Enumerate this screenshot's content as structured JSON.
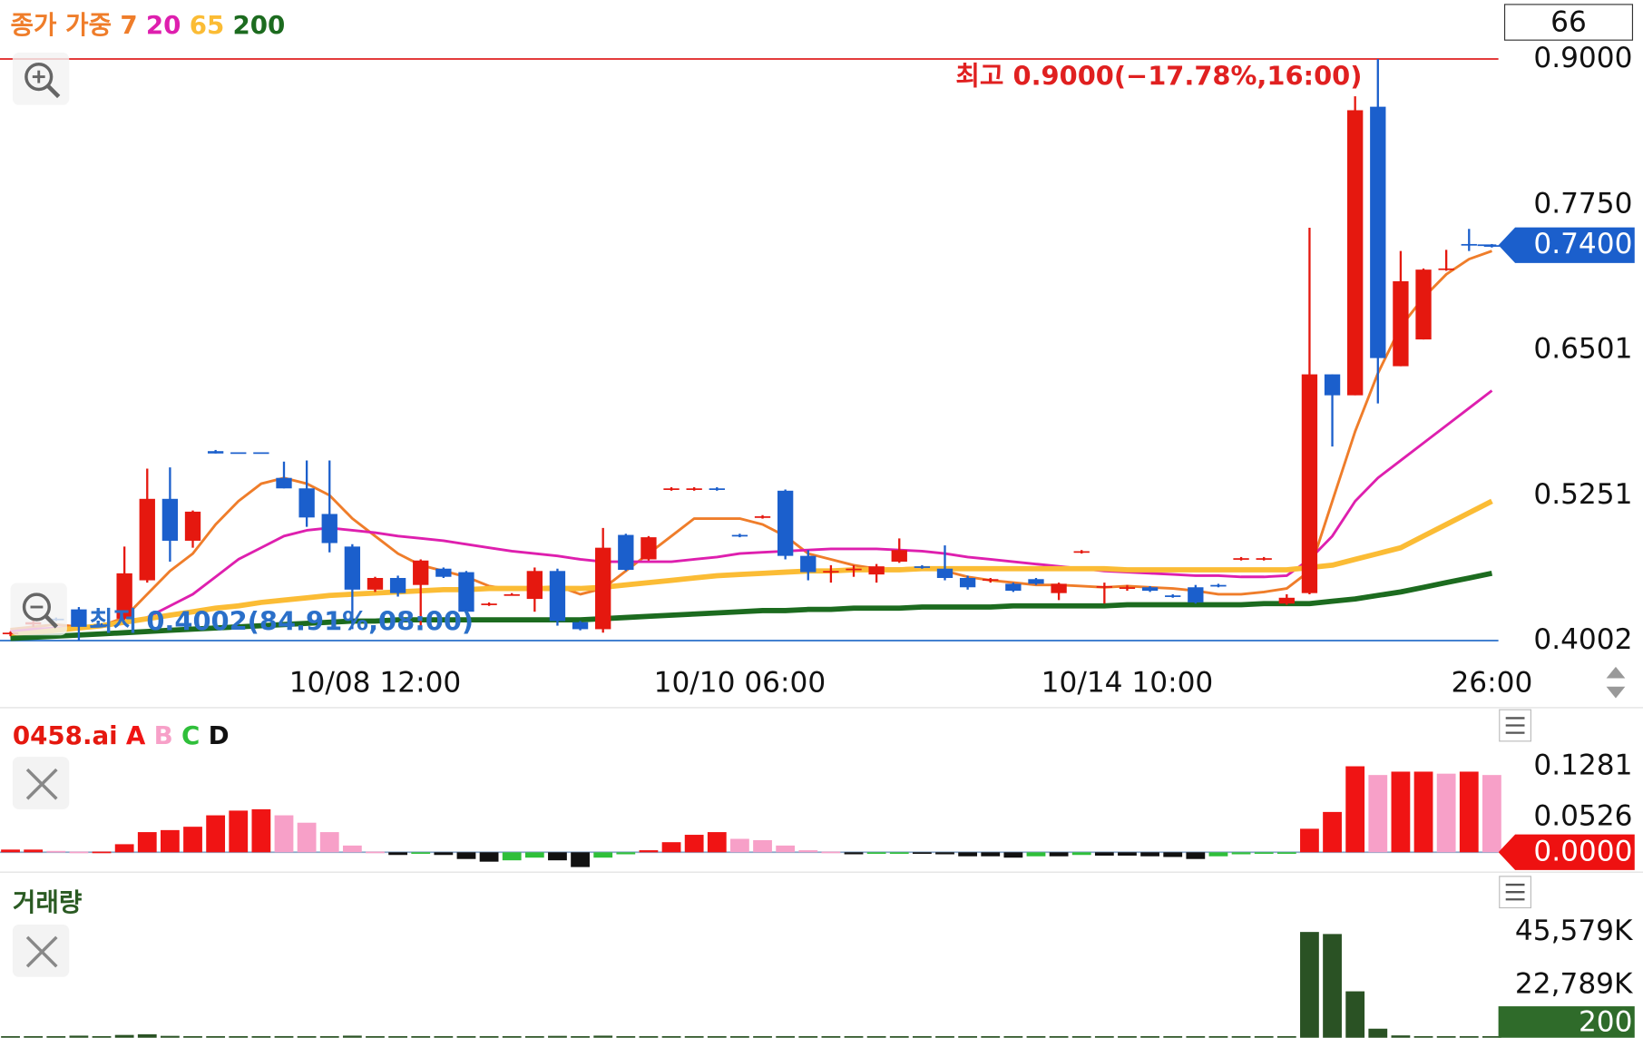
{
  "chart_data": [
    {
      "type": "candlestick",
      "legend_title": "종가 가중",
      "badge": "66",
      "categories": [
        null,
        null,
        null,
        null,
        null,
        null,
        null,
        null,
        null,
        null,
        null,
        null,
        null,
        null,
        null,
        null,
        "10/08 12:00",
        null,
        null,
        null,
        null,
        null,
        null,
        null,
        null,
        null,
        null,
        null,
        null,
        null,
        null,
        null,
        "10/10 06:00",
        null,
        null,
        null,
        null,
        null,
        null,
        null,
        null,
        null,
        null,
        null,
        null,
        null,
        null,
        null,
        null,
        "10/14 10:00",
        null,
        null,
        null,
        null,
        null,
        null,
        null,
        null,
        null,
        null,
        null,
        null,
        null,
        null,
        null,
        "26:00"
      ],
      "open": [
        0.406,
        0.414,
        0.419,
        0.427,
        0.414,
        0.419,
        0.452,
        0.522,
        0.486,
        0.563,
        0.562,
        0.562,
        0.54,
        0.531,
        0.509,
        0.481,
        0.444,
        0.454,
        0.448,
        0.462,
        0.459,
        0.431,
        0.44,
        0.436,
        0.46,
        0.416,
        0.41,
        0.491,
        0.47,
        0.53,
        0.53,
        0.531,
        0.491,
        0.506,
        0.529,
        0.473,
        0.459,
        0.461,
        0.457,
        0.468,
        0.464,
        0.462,
        0.454,
        0.452,
        0.449,
        0.453,
        0.441,
        0.476,
        0.446,
        0.445,
        0.446,
        0.439,
        0.446,
        0.448,
        0.47,
        0.47,
        0.432,
        0.441,
        0.629,
        0.611,
        0.859,
        0.636,
        0.659,
        0.719,
        0.741,
        0.74
      ],
      "high": [
        0.408,
        0.418,
        0.42,
        0.429,
        0.415,
        0.481,
        0.548,
        0.549,
        0.512,
        0.564,
        0.562,
        0.562,
        0.554,
        0.555,
        0.555,
        0.483,
        0.455,
        0.456,
        0.47,
        0.463,
        0.46,
        0.433,
        0.441,
        0.463,
        0.462,
        0.417,
        0.497,
        0.492,
        0.49,
        0.532,
        0.532,
        0.532,
        0.492,
        0.508,
        0.53,
        0.478,
        0.465,
        0.465,
        0.466,
        0.488,
        0.465,
        0.482,
        0.456,
        0.454,
        0.45,
        0.454,
        0.45,
        0.478,
        0.45,
        0.448,
        0.447,
        0.44,
        0.448,
        0.449,
        0.472,
        0.472,
        0.44,
        0.755,
        0.629,
        0.868,
        0.9,
        0.735,
        0.72,
        0.736,
        0.754,
        0.741
      ],
      "low": [
        0.404,
        0.412,
        0.417,
        0.4002,
        0.412,
        0.418,
        0.45,
        0.468,
        0.48,
        0.561,
        0.561,
        0.561,
        0.531,
        0.498,
        0.476,
        0.41,
        0.442,
        0.438,
        0.412,
        0.454,
        0.424,
        0.43,
        0.439,
        0.425,
        0.413,
        0.409,
        0.407,
        0.46,
        0.469,
        0.529,
        0.529,
        0.529,
        0.489,
        0.505,
        0.47,
        0.452,
        0.45,
        0.455,
        0.45,
        0.467,
        0.462,
        0.452,
        0.444,
        0.45,
        0.442,
        0.448,
        0.435,
        0.475,
        0.432,
        0.443,
        0.442,
        0.437,
        0.432,
        0.446,
        0.469,
        0.469,
        0.431,
        0.44,
        0.567,
        0.611,
        0.604,
        0.636,
        0.659,
        0.718,
        0.735,
        0.738
      ],
      "close": [
        0.407,
        0.416,
        0.418,
        0.412,
        0.413,
        0.458,
        0.522,
        0.486,
        0.511,
        0.561,
        0.561,
        0.561,
        0.531,
        0.506,
        0.484,
        0.444,
        0.454,
        0.441,
        0.469,
        0.455,
        0.425,
        0.432,
        0.44,
        0.46,
        0.417,
        0.41,
        0.48,
        0.461,
        0.489,
        0.531,
        0.531,
        0.53,
        0.49,
        0.507,
        0.473,
        0.459,
        0.46,
        0.462,
        0.464,
        0.478,
        0.463,
        0.454,
        0.446,
        0.453,
        0.443,
        0.449,
        0.449,
        0.477,
        0.447,
        0.446,
        0.443,
        0.438,
        0.433,
        0.447,
        0.471,
        0.471,
        0.437,
        0.629,
        0.611,
        0.856,
        0.643,
        0.709,
        0.719,
        0.72,
        0.74,
        0.739
      ],
      "up_color": "#e5180f",
      "down_color": "#1b5fcc",
      "series": [
        {
          "name": "7",
          "color": "#ef7d2a",
          "values": [
            0.41,
            0.412,
            0.414,
            0.412,
            0.413,
            0.42,
            0.44,
            0.46,
            0.475,
            0.5,
            0.52,
            0.535,
            0.54,
            0.535,
            0.525,
            0.505,
            0.49,
            0.475,
            0.465,
            0.46,
            0.455,
            0.447,
            0.444,
            0.445,
            0.447,
            0.44,
            0.445,
            0.46,
            0.475,
            0.49,
            0.505,
            0.505,
            0.505,
            0.5,
            0.49,
            0.475,
            0.47,
            0.465,
            0.462,
            0.462,
            0.463,
            0.46,
            0.455,
            0.452,
            0.45,
            0.448,
            0.448,
            0.447,
            0.446,
            0.447,
            0.446,
            0.445,
            0.443,
            0.44,
            0.44,
            0.442,
            0.445,
            0.46,
            0.52,
            0.58,
            0.63,
            0.67,
            0.695,
            0.715,
            0.728,
            0.735
          ]
        },
        {
          "name": "20",
          "color": "#de1fae",
          "values": [
            0.408,
            0.41,
            0.411,
            0.411,
            0.412,
            0.415,
            0.42,
            0.43,
            0.44,
            0.455,
            0.47,
            0.48,
            0.49,
            0.495,
            0.497,
            0.495,
            0.493,
            0.49,
            0.488,
            0.486,
            0.483,
            0.48,
            0.477,
            0.475,
            0.473,
            0.47,
            0.468,
            0.468,
            0.468,
            0.468,
            0.47,
            0.472,
            0.475,
            0.476,
            0.477,
            0.478,
            0.479,
            0.479,
            0.479,
            0.478,
            0.477,
            0.475,
            0.472,
            0.47,
            0.468,
            0.466,
            0.464,
            0.462,
            0.46,
            0.459,
            0.458,
            0.457,
            0.456,
            0.456,
            0.455,
            0.455,
            0.456,
            0.47,
            0.49,
            0.52,
            0.54,
            0.555,
            0.57,
            0.585,
            0.6,
            0.615
          ]
        },
        {
          "name": "65",
          "color": "#fbbc35",
          "values": [
            0.405,
            0.407,
            0.409,
            0.411,
            0.413,
            0.416,
            0.419,
            0.422,
            0.425,
            0.428,
            0.43,
            0.433,
            0.435,
            0.437,
            0.439,
            0.44,
            0.441,
            0.442,
            0.443,
            0.444,
            0.444,
            0.445,
            0.445,
            0.445,
            0.445,
            0.445,
            0.446,
            0.448,
            0.45,
            0.452,
            0.454,
            0.456,
            0.457,
            0.458,
            0.459,
            0.46,
            0.46,
            0.461,
            0.461,
            0.461,
            0.462,
            0.462,
            0.462,
            0.462,
            0.462,
            0.462,
            0.462,
            0.462,
            0.462,
            0.461,
            0.461,
            0.461,
            0.461,
            0.461,
            0.461,
            0.461,
            0.461,
            0.463,
            0.465,
            0.47,
            0.475,
            0.48,
            0.49,
            0.5,
            0.51,
            0.52
          ]
        },
        {
          "name": "200",
          "color": "#1c6b1f",
          "values": [
            0.402,
            0.403,
            0.404,
            0.405,
            0.406,
            0.407,
            0.408,
            0.409,
            0.41,
            0.411,
            0.412,
            0.413,
            0.414,
            0.415,
            0.416,
            0.417,
            0.417,
            0.418,
            0.418,
            0.418,
            0.418,
            0.418,
            0.418,
            0.418,
            0.418,
            0.418,
            0.419,
            0.42,
            0.421,
            0.422,
            0.423,
            0.424,
            0.425,
            0.426,
            0.426,
            0.427,
            0.427,
            0.428,
            0.428,
            0.428,
            0.429,
            0.429,
            0.429,
            0.429,
            0.43,
            0.43,
            0.43,
            0.43,
            0.43,
            0.431,
            0.431,
            0.431,
            0.431,
            0.431,
            0.431,
            0.432,
            0.432,
            0.432,
            0.434,
            0.436,
            0.439,
            0.442,
            0.446,
            0.45,
            0.454,
            0.458
          ]
        }
      ],
      "ylim": [
        0.3849,
        0.9505
      ],
      "yticks": [
        {
          "value": 0.9,
          "label": "0.9000"
        },
        {
          "value": 0.775,
          "label": "0.7750"
        },
        {
          "value": 0.6501,
          "label": "0.6501"
        },
        {
          "value": 0.5251,
          "label": "0.5251"
        },
        {
          "value": 0.4002,
          "label": "0.4002"
        }
      ],
      "grid": true,
      "high_line": {
        "value": 0.9,
        "color": "#e02020",
        "annotation": "최고 0.9000(−17.78%,16:00)"
      },
      "low_line": {
        "value": 0.4002,
        "color": "#2a6fc9",
        "annotation": "최저 0.4002(84.91%,08:00)"
      },
      "current": {
        "value": 0.74,
        "label": "0.7400",
        "color": "#1b5fcc"
      }
    },
    {
      "type": "bar",
      "title": "0458.ai",
      "title_color": "#e5180f",
      "legend": [
        {
          "name": "A",
          "color": "#f01414"
        },
        {
          "name": "B",
          "color": "#f7a0c8"
        },
        {
          "name": "C",
          "color": "#2fbf3a"
        },
        {
          "name": "D",
          "color": "#111111"
        }
      ],
      "values": [
        0.004,
        0.004,
        0.002,
        0.001,
        0.001,
        0.012,
        0.03,
        0.033,
        0.038,
        0.055,
        0.062,
        0.064,
        0.055,
        0.044,
        0.03,
        0.01,
        0.001,
        -0.004,
        -0.002,
        -0.004,
        -0.01,
        -0.014,
        -0.012,
        -0.008,
        -0.012,
        -0.022,
        -0.008,
        -0.003,
        0.003,
        0.015,
        0.026,
        0.03,
        0.02,
        0.018,
        0.01,
        0.003,
        0.001,
        -0.003,
        -0.002,
        -0.001,
        -0.002,
        -0.003,
        -0.006,
        -0.006,
        -0.008,
        -0.006,
        -0.006,
        -0.004,
        -0.005,
        -0.005,
        -0.006,
        -0.007,
        -0.01,
        -0.006,
        -0.003,
        -0.002,
        -0.001,
        0.035,
        0.06,
        0.128,
        0.115,
        0.12,
        0.12,
        0.117,
        0.12,
        0.115
      ],
      "ylim": [
        -0.0265,
        0.2075
      ],
      "yticks": [
        {
          "value": 0.1281,
          "label": "0.1281"
        },
        {
          "value": 0.0526,
          "label": "0.0526"
        }
      ],
      "baseline": {
        "value": 0,
        "label": "0.0000",
        "color": "#ee1111"
      }
    },
    {
      "type": "volume",
      "title": "거래량",
      "title_color": "#2a5a22",
      "color": "#2a5224",
      "values": [
        400,
        300,
        200,
        900,
        500,
        1200,
        1500,
        800,
        600,
        300,
        300,
        300,
        700,
        600,
        500,
        900,
        400,
        400,
        500,
        300,
        600,
        200,
        300,
        500,
        800,
        600,
        900,
        500,
        400,
        200,
        200,
        200,
        200,
        200,
        700,
        500,
        300,
        300,
        300,
        400,
        200,
        400,
        400,
        300,
        300,
        300,
        400,
        200,
        300,
        300,
        300,
        200,
        400,
        200,
        200,
        200,
        300,
        45579,
        44700,
        20000,
        3900,
        1000,
        600,
        300,
        400,
        200
      ],
      "ylim": [
        0,
        70000
      ],
      "yticks": [
        {
          "value": 45579,
          "label": "45,579K"
        },
        {
          "value": 22789,
          "label": "22,789K"
        }
      ],
      "tag_color": "#2f6b2a"
    }
  ]
}
